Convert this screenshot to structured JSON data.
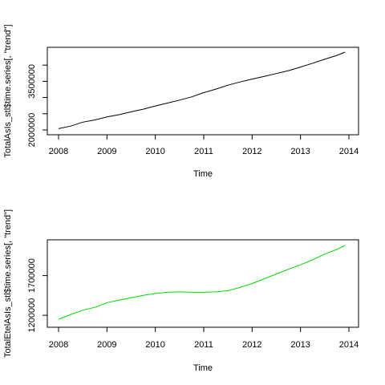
{
  "chart_data": [
    {
      "type": "line",
      "xlabel": "Time",
      "ylabel": "TotalAsIs_stl$time.series[, \"trend\"]",
      "xlim": [
        2008,
        2014
      ],
      "ylim": [
        2000000,
        4450000
      ],
      "xticks": [
        2008,
        2009,
        2010,
        2011,
        2012,
        2013,
        2014
      ],
      "yticks": [
        2000000,
        2500000,
        3000000,
        3500000,
        4000000
      ],
      "ytick_labels": [
        "2000000",
        "",
        "",
        "3500000",
        ""
      ],
      "color": "#000000",
      "series": [
        {
          "x": [
            2008.0,
            2008.25,
            2008.5,
            2008.75,
            2009.0,
            2009.25,
            2009.5,
            2009.75,
            2010.0,
            2010.25,
            2010.5,
            2010.75,
            2011.0,
            2011.25,
            2011.5,
            2011.75,
            2012.0,
            2012.25,
            2012.5,
            2012.75,
            2013.0,
            2013.25,
            2013.5,
            2013.75,
            2013.92
          ],
          "y": [
            2040000,
            2120000,
            2240000,
            2310000,
            2400000,
            2470000,
            2560000,
            2640000,
            2740000,
            2830000,
            2920000,
            3020000,
            3150000,
            3260000,
            3380000,
            3480000,
            3570000,
            3650000,
            3740000,
            3830000,
            3940000,
            4060000,
            4180000,
            4300000,
            4400000
          ]
        }
      ]
    },
    {
      "type": "line",
      "xlabel": "Time",
      "ylabel": "TotalEtelAsIs_stl$time.series[, \"trend\"]",
      "xlim": [
        2008,
        2014
      ],
      "ylim": [
        1110000,
        2110000
      ],
      "xticks": [
        2008,
        2009,
        2010,
        2011,
        2012,
        2013,
        2014
      ],
      "yticks": [
        1200000,
        1700000
      ],
      "ytick_labels": [
        "1200000",
        "1700000"
      ],
      "color": "#00dd00",
      "series": [
        {
          "x": [
            2008.0,
            2008.25,
            2008.5,
            2008.75,
            2009.0,
            2009.25,
            2009.5,
            2009.75,
            2010.0,
            2010.25,
            2010.5,
            2010.75,
            2011.0,
            2011.25,
            2011.5,
            2011.75,
            2012.0,
            2012.25,
            2012.5,
            2012.75,
            2013.0,
            2013.25,
            2013.5,
            2013.75,
            2013.92
          ],
          "y": [
            1150000,
            1210000,
            1265000,
            1300000,
            1360000,
            1390000,
            1420000,
            1450000,
            1475000,
            1490000,
            1495000,
            1490000,
            1490000,
            1495000,
            1510000,
            1550000,
            1600000,
            1660000,
            1720000,
            1780000,
            1835000,
            1900000,
            1970000,
            2030000,
            2080000
          ]
        }
      ]
    }
  ]
}
